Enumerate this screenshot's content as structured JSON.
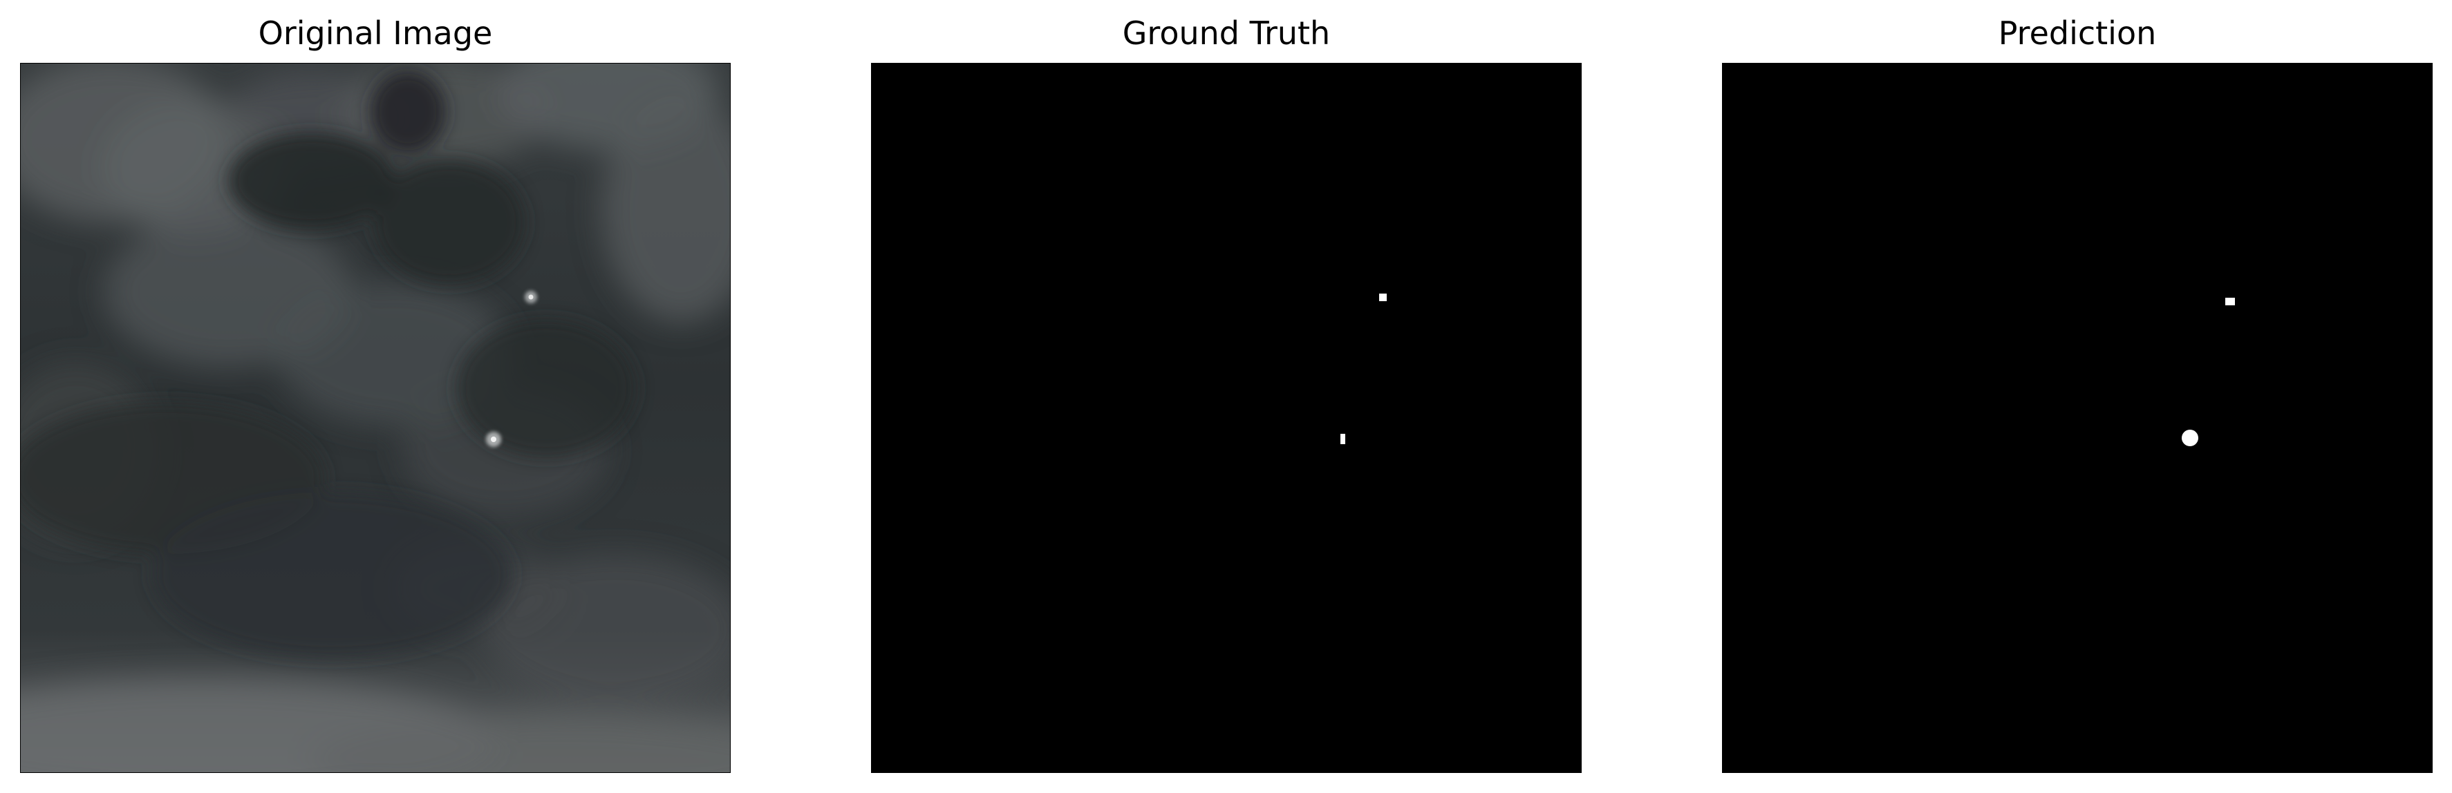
{
  "figure": {
    "panels": [
      {
        "title": "Original Image"
      },
      {
        "title": "Ground Truth"
      },
      {
        "title": "Prediction"
      }
    ]
  },
  "colors": {
    "background": "#ffffff",
    "mask_background": "#000000",
    "mask_foreground": "#ffffff",
    "cloud_dark": "#24282a",
    "cloud_mid": "#33383a",
    "cloud_light": "#505456",
    "horizon_light": "#6a6d6f"
  },
  "icons": {
    "original": "sky-image-icon",
    "ground_truth": "binary-mask-icon",
    "prediction": "binary-mask-icon"
  }
}
